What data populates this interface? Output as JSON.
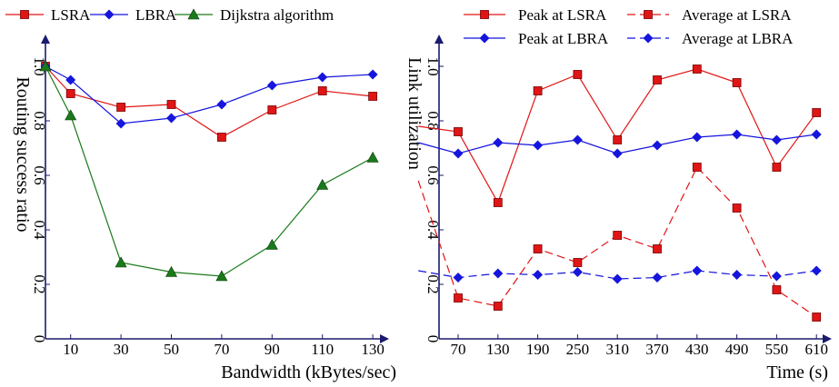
{
  "chart_data": [
    {
      "type": "line",
      "xlabel": "Bandwidth (kBytes/sec)",
      "ylabel": "Routing success ratio",
      "x": [
        0,
        10,
        30,
        50,
        70,
        90,
        110,
        130
      ],
      "x_tick_labels": [
        "10",
        "30",
        "50",
        "70",
        "90",
        "110",
        "130"
      ],
      "y_tick_labels": [
        "0",
        "0.2",
        "0.4",
        "0.6",
        "0.8",
        "1.0"
      ],
      "ylim": [
        0,
        1.1
      ],
      "grid": false,
      "legend_position": "top",
      "series": [
        {
          "name": "LSRA",
          "color": "#e01515",
          "marker": "square",
          "values": [
            1.0,
            0.9,
            0.85,
            0.86,
            0.74,
            0.84,
            0.91,
            0.89
          ]
        },
        {
          "name": "LBRA",
          "color": "#1515dd",
          "marker": "diamond",
          "values": [
            1.0,
            0.95,
            0.79,
            0.81,
            0.86,
            0.93,
            0.96,
            0.97
          ]
        },
        {
          "name": "Dijkstra algorithm",
          "color": "#1a7a1a",
          "marker": "triangle",
          "values": [
            1.0,
            0.82,
            0.28,
            0.245,
            0.23,
            0.345,
            0.565,
            0.665
          ]
        }
      ]
    },
    {
      "type": "line",
      "xlabel": "Time (s)",
      "ylabel": "Link utilization",
      "x": [
        10,
        70,
        130,
        190,
        250,
        310,
        370,
        430,
        490,
        550,
        610
      ],
      "x_tick_labels": [
        "70",
        "130",
        "190",
        "250",
        "310",
        "370",
        "430",
        "490",
        "550",
        "610"
      ],
      "y_tick_labels": [
        "0",
        "0.2",
        "0.4",
        "0.6",
        "0.8",
        "1.0"
      ],
      "ylim": [
        0,
        1.1
      ],
      "grid": false,
      "legend_position": "top",
      "series": [
        {
          "name": "Peak at LSRA",
          "color": "#e01515",
          "dash": "solid",
          "marker": "square",
          "values": [
            0.78,
            0.76,
            0.5,
            0.91,
            0.97,
            0.73,
            0.95,
            0.99,
            0.94,
            0.63,
            0.83
          ]
        },
        {
          "name": "Average at LSRA",
          "color": "#e01515",
          "dash": "dashed",
          "marker": "square",
          "values": [
            0.58,
            0.15,
            0.12,
            0.33,
            0.28,
            0.38,
            0.33,
            0.63,
            0.48,
            0.18,
            0.08
          ]
        },
        {
          "name": "Peak at LBRA",
          "color": "#1515dd",
          "dash": "solid",
          "marker": "diamond",
          "values": [
            0.72,
            0.68,
            0.72,
            0.71,
            0.73,
            0.68,
            0.71,
            0.74,
            0.75,
            0.73,
            0.75
          ]
        },
        {
          "name": "Average at LBRA",
          "color": "#1515dd",
          "dash": "dashed",
          "marker": "diamond",
          "values": [
            0.25,
            0.225,
            0.24,
            0.235,
            0.245,
            0.22,
            0.225,
            0.25,
            0.235,
            0.23,
            0.25
          ]
        }
      ]
    }
  ]
}
